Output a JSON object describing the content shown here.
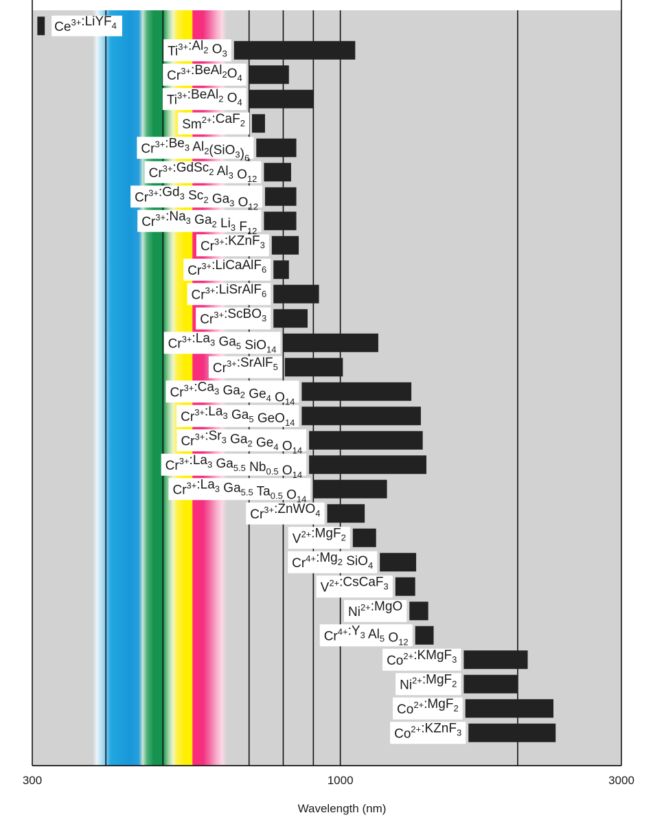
{
  "chart_data": {
    "type": "bar",
    "subtype": "horizontal-range",
    "xscale": "log",
    "xlim": [
      300,
      3000
    ],
    "xticks": [
      300,
      1000,
      3000
    ],
    "xtick_labels": [
      "300",
      "1000",
      "3000"
    ],
    "xlabel": "Wavelength (nm)",
    "ylabel": "",
    "title": "",
    "grid_x": [
      400,
      500,
      700,
      800,
      900,
      1000,
      2000
    ],
    "visible_spectrum_band": [
      380,
      750
    ],
    "bar_color": "#222222",
    "background_color": "#d2d2d2",
    "ranges": [
      {
        "label": [
          "Ce",
          "3+",
          ":LiYF",
          "_4"
        ],
        "min": 306,
        "max": 315
      },
      {
        "label": [
          "Ti",
          "3+",
          ":Al",
          "_2",
          " O",
          "_3"
        ],
        "min": 660,
        "max": 1060
      },
      {
        "label": [
          "Cr",
          "3+",
          ":BeAl",
          "_2",
          "O",
          "_4"
        ],
        "min": 700,
        "max": 818
      },
      {
        "label": [
          "Ti",
          "3+",
          ":BeAl",
          "_2",
          " O",
          "_4"
        ],
        "min": 700,
        "max": 900
      },
      {
        "label": [
          "Sm",
          "2+",
          ":CaF",
          "_2"
        ],
        "min": 708,
        "max": 745
      },
      {
        "label": [
          "Cr",
          "3+",
          ":Be",
          "_3",
          " Al",
          "_2",
          "(SiO",
          "_3",
          ")",
          "_6"
        ],
        "min": 720,
        "max": 842
      },
      {
        "label": [
          "Cr",
          "3+",
          ":GdSc",
          "_2",
          " Al",
          "_3",
          " O",
          "_12"
        ],
        "min": 742,
        "max": 825
      },
      {
        "label": [
          "Cr",
          "3+",
          ":Gd",
          "_3",
          " Sc",
          "_2",
          " Ga",
          "_3",
          " O",
          "_12"
        ],
        "min": 745,
        "max": 842
      },
      {
        "label": [
          "Cr",
          "3+",
          ":Na",
          "_3",
          " Ga",
          "_2",
          " Li",
          "_3",
          " F",
          "_12"
        ],
        "min": 742,
        "max": 842
      },
      {
        "label": [
          "Cr",
          "3+",
          ":KZnF",
          "_3"
        ],
        "min": 765,
        "max": 850
      },
      {
        "label": [
          "Cr",
          "3+",
          ":LiCaAlF",
          "_6"
        ],
        "min": 770,
        "max": 818
      },
      {
        "label": [
          "Cr",
          "3+",
          ":LiSrAlF",
          "_6"
        ],
        "min": 770,
        "max": 920
      },
      {
        "label": [
          "Cr",
          "3+",
          ":ScBO",
          "_3"
        ],
        "min": 770,
        "max": 880
      },
      {
        "label": [
          "Cr",
          "3+",
          ":La",
          "_3",
          " Ga",
          "_5",
          " SiO",
          "_14"
        ],
        "min": 800,
        "max": 1160
      },
      {
        "label": [
          "Cr",
          "3+",
          ":SrAlF",
          "_5"
        ],
        "min": 805,
        "max": 1010
      },
      {
        "label": [
          "Cr",
          "3+",
          ":Ca",
          "_3",
          " Ga",
          "_2",
          " Ge",
          "_4",
          " O",
          "_14"
        ],
        "min": 860,
        "max": 1320
      },
      {
        "label": [
          "Cr",
          "3+",
          ":La",
          "_3",
          " Ga",
          "_5",
          " GeO",
          "_14"
        ],
        "min": 860,
        "max": 1370
      },
      {
        "label": [
          "Cr",
          "3+",
          ":Sr",
          "_3",
          " Ga",
          "_2",
          " Ge",
          "_4",
          " O",
          "_14"
        ],
        "min": 885,
        "max": 1380
      },
      {
        "label": [
          "Cr",
          "3+",
          ":La",
          "_3",
          " Ga",
          "_5.5",
          " Nb",
          "_0.5",
          " O",
          "_14"
        ],
        "min": 885,
        "max": 1400
      },
      {
        "label": [
          "Cr",
          "3+",
          ":La",
          "_3",
          " Ga",
          "_5.5",
          " Ta",
          "_0.5",
          " O",
          "_14"
        ],
        "min": 900,
        "max": 1200
      },
      {
        "label": [
          "Cr",
          "3+",
          ":ZnWO",
          "_4"
        ],
        "min": 950,
        "max": 1100
      },
      {
        "label": [
          "V",
          "2+",
          ":MgF",
          "_2"
        ],
        "min": 1050,
        "max": 1150
      },
      {
        "label": [
          "Cr",
          "4+",
          ":Mg",
          "_2",
          " SiO",
          "_4"
        ],
        "min": 1167,
        "max": 1345
      },
      {
        "label": [
          "V",
          "2+",
          ":CsCaF",
          "_3"
        ],
        "min": 1240,
        "max": 1340
      },
      {
        "label": [
          "Ni",
          "2+",
          ":MgO"
        ],
        "min": 1310,
        "max": 1410
      },
      {
        "label": [
          "Cr",
          "4+",
          ":Y",
          "_3",
          " Al",
          "_5",
          " O",
          "_12"
        ],
        "min": 1340,
        "max": 1440
      },
      {
        "label": [
          "Co",
          "2+",
          ":KMgF",
          "_3"
        ],
        "min": 1620,
        "max": 2080
      },
      {
        "label": [
          "Ni",
          "2+",
          ":MgF",
          "_2"
        ],
        "min": 1620,
        "max": 2000
      },
      {
        "label": [
          "Co",
          "2+",
          ":MgF",
          "_2"
        ],
        "min": 1630,
        "max": 2300
      },
      {
        "label": [
          "Co",
          "2+",
          ":KZnF",
          "_3"
        ],
        "min": 1650,
        "max": 2320
      }
    ]
  }
}
